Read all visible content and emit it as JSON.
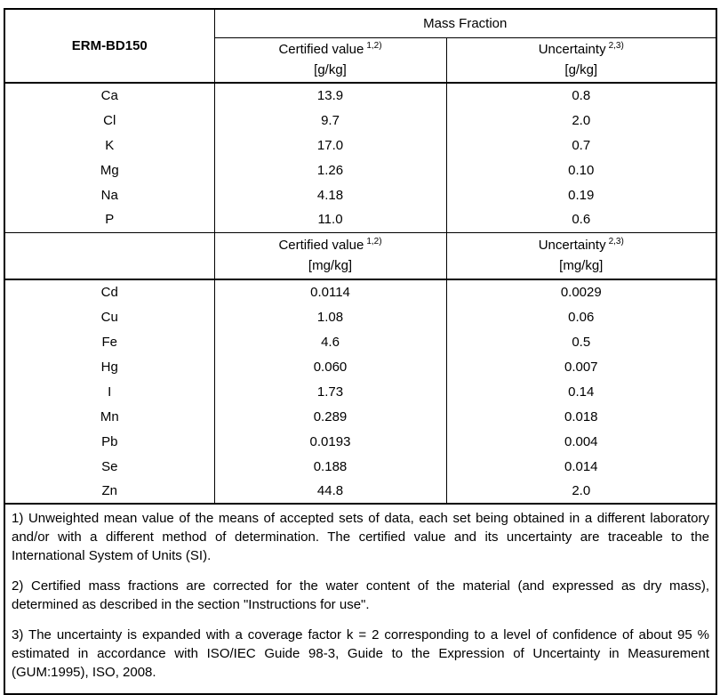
{
  "table": {
    "id_header": "ERM-BD150",
    "group_header": "Mass Fraction",
    "sections": [
      {
        "certified_label": "Certified value",
        "certified_sup": "1,2)",
        "certified_unit": "[g/kg]",
        "uncertainty_label": "Uncertainty",
        "uncertainty_sup": "2,3)",
        "uncertainty_unit": "[g/kg]",
        "rows": [
          {
            "element": "Ca",
            "certified": "13.9",
            "uncertainty": "0.8"
          },
          {
            "element": "Cl",
            "certified": "9.7",
            "uncertainty": "2.0"
          },
          {
            "element": "K",
            "certified": "17.0",
            "uncertainty": "0.7"
          },
          {
            "element": "Mg",
            "certified": "1.26",
            "uncertainty": "0.10"
          },
          {
            "element": "Na",
            "certified": "4.18",
            "uncertainty": "0.19"
          },
          {
            "element": "P",
            "certified": "11.0",
            "uncertainty": "0.6"
          }
        ]
      },
      {
        "certified_label": "Certified value",
        "certified_sup": "1,2)",
        "certified_unit": "[mg/kg]",
        "uncertainty_label": "Uncertainty",
        "uncertainty_sup": "2,3)",
        "uncertainty_unit": "[mg/kg]",
        "rows": [
          {
            "element": "Cd",
            "certified": "0.0114",
            "uncertainty": "0.0029"
          },
          {
            "element": "Cu",
            "certified": "1.08",
            "uncertainty": "0.06"
          },
          {
            "element": "Fe",
            "certified": "4.6",
            "uncertainty": "0.5"
          },
          {
            "element": "Hg",
            "certified": "0.060",
            "uncertainty": "0.007"
          },
          {
            "element": "I",
            "certified": "1.73",
            "uncertainty": "0.14"
          },
          {
            "element": "Mn",
            "certified": "0.289",
            "uncertainty": "0.018"
          },
          {
            "element": "Pb",
            "certified": "0.0193",
            "uncertainty": "0.004"
          },
          {
            "element": "Se",
            "certified": "0.188",
            "uncertainty": "0.014"
          },
          {
            "element": "Zn",
            "certified": "44.8",
            "uncertainty": "2.0"
          }
        ]
      }
    ],
    "footnotes": [
      "1) Unweighted mean value of the means of accepted sets of data, each set being obtained in a different laboratory and/or with a different method of determination. The certified value and its uncertainty are traceable to the International System of Units (SI).",
      "2) Certified mass fractions are corrected for the water content of the material (and expressed as dry mass), determined as described in the section \"Instructions for use\".",
      "3) The uncertainty is  expanded with a coverage factor k = 2 corresponding to a level of confidence of about 95 % estimated in accordance with ISO/IEC Guide 98-3, Guide to the Expression of Uncertainty in Measurement (GUM:1995), ISO, 2008."
    ],
    "colors": {
      "border": "#000000",
      "text": "#000000",
      "background": "#ffffff"
    }
  }
}
